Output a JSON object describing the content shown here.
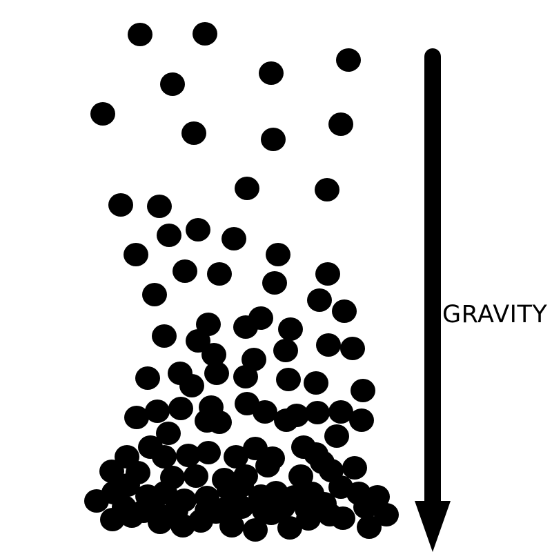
{
  "label": "GRAVITY",
  "colors": {
    "particle": "#000000",
    "arrow": "#000000",
    "background": "#ffffff"
  },
  "arrow": {
    "direction": "down"
  }
}
